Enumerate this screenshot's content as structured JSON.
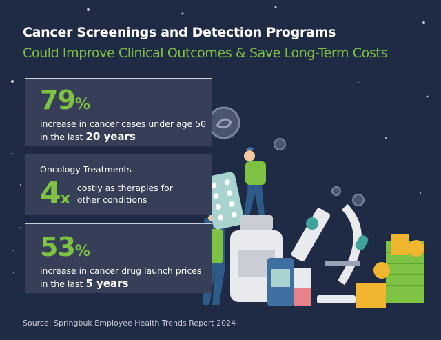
{
  "title": "Cancer Screenings and Detection Programs",
  "subtitle": "Could Improve Clinical Outcomes & Save Long-Term Costs",
  "stats": [
    {
      "value": "79",
      "unit": "%",
      "text": "increase in cancer cases under age 50",
      "text2_prefix": "in the last",
      "text2_bold": "20 years"
    },
    {
      "label": "Oncology Treatments",
      "value": "4",
      "unit": "x",
      "text": "costly as therapies for",
      "text2": "other conditions"
    },
    {
      "value": "53",
      "unit": "%",
      "text": "increase in cancer drug launch prices",
      "text2_prefix": "in the last",
      "text2_bold": "5 years"
    }
  ],
  "source": "Source: Springbuk Employee Health Trends Report 2024",
  "colors": {
    "background": "#1f2a44",
    "card": "#363f57",
    "accent": "#7dc242"
  }
}
